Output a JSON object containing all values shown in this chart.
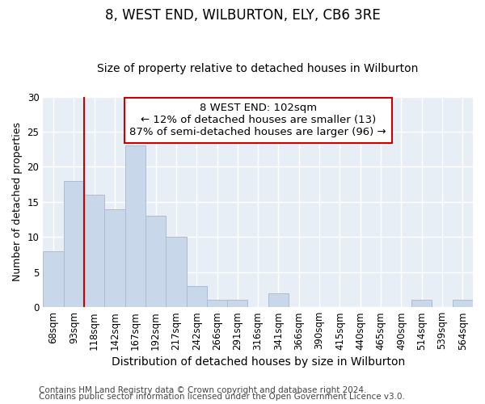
{
  "title": "8, WEST END, WILBURTON, ELY, CB6 3RE",
  "subtitle": "Size of property relative to detached houses in Wilburton",
  "xlabel": "Distribution of detached houses by size in Wilburton",
  "ylabel": "Number of detached properties",
  "bar_labels": [
    "68sqm",
    "93sqm",
    "118sqm",
    "142sqm",
    "167sqm",
    "192sqm",
    "217sqm",
    "242sqm",
    "266sqm",
    "291sqm",
    "316sqm",
    "341sqm",
    "366sqm",
    "390sqm",
    "415sqm",
    "440sqm",
    "465sqm",
    "490sqm",
    "514sqm",
    "539sqm",
    "564sqm"
  ],
  "bar_values": [
    8,
    18,
    16,
    14,
    23,
    13,
    10,
    3,
    1,
    1,
    0,
    2,
    0,
    0,
    0,
    0,
    0,
    0,
    1,
    0,
    1
  ],
  "bar_color": "#c8d8ea",
  "bar_edgecolor": "#aabdd4",
  "vline_x": 1.5,
  "vline_color": "#cc0000",
  "annotation_box_text": "8 WEST END: 102sqm\n← 12% of detached houses are smaller (13)\n87% of semi-detached houses are larger (96) →",
  "ylim": [
    0,
    30
  ],
  "yticks": [
    0,
    5,
    10,
    15,
    20,
    25,
    30
  ],
  "footer1": "Contains HM Land Registry data © Crown copyright and database right 2024.",
  "footer2": "Contains public sector information licensed under the Open Government Licence v3.0.",
  "bg_color": "#ffffff",
  "plot_bg_color": "#e8eef5",
  "grid_color": "#ffffff",
  "title_fontsize": 12,
  "subtitle_fontsize": 10,
  "xlabel_fontsize": 10,
  "ylabel_fontsize": 9,
  "tick_fontsize": 8.5,
  "footer_fontsize": 7.5,
  "annotation_fontsize": 9.5
}
